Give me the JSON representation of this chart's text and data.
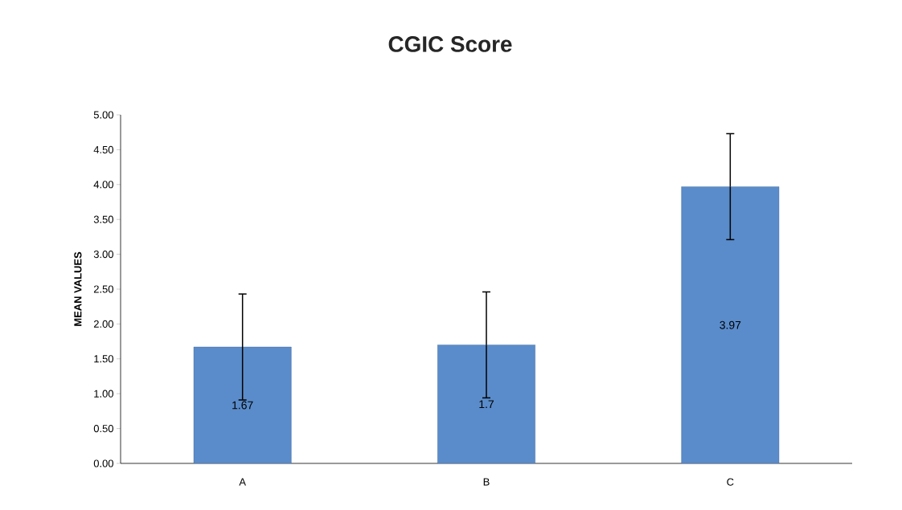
{
  "chart_data": {
    "type": "bar",
    "title": "CGIC Score",
    "ylabel": "MEAN VALUES",
    "categories": [
      "A",
      "B",
      "C"
    ],
    "values": [
      1.67,
      1.7,
      3.97
    ],
    "errors": [
      0.76,
      0.76,
      0.76
    ],
    "color": "#5a8ccb",
    "data_labels": true,
    "ylim": [
      0,
      5
    ],
    "yticks": [
      {
        "value": 0,
        "label": "0.00"
      },
      {
        "value": 0.5,
        "label": "0.50"
      },
      {
        "value": 1,
        "label": "1.00"
      },
      {
        "value": 1.5,
        "label": "1.50"
      },
      {
        "value": 2,
        "label": "2.00"
      },
      {
        "value": 2.5,
        "label": "2.50"
      },
      {
        "value": 3,
        "label": "3.00"
      },
      {
        "value": 3.5,
        "label": "3.50"
      },
      {
        "value": 4,
        "label": "4.00"
      },
      {
        "value": 4.5,
        "label": "4.50"
      },
      {
        "value": 5,
        "label": "5.00"
      }
    ],
    "grid": false
  }
}
